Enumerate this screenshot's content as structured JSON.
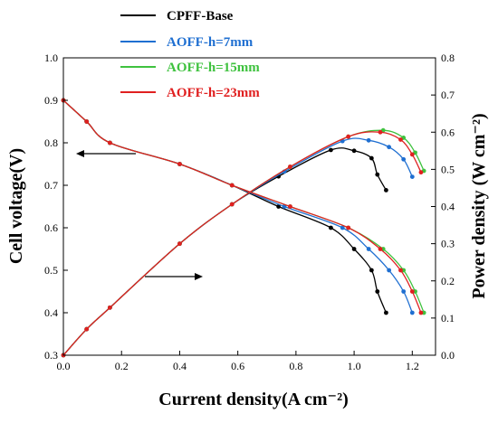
{
  "chart_data": {
    "type": "line",
    "xlabel": "Current density(A cm⁻²)",
    "ylabel_left": "Cell voltage(V)",
    "ylabel_right": "Power density (W cm⁻²)",
    "xlim": [
      0,
      1.28
    ],
    "ylim_left": [
      0.3,
      1.0
    ],
    "ylim_right": [
      0.0,
      0.8
    ],
    "x_ticks": [
      "0.0",
      "0.2",
      "0.4",
      "0.6",
      "0.8",
      "1.0",
      "1.2"
    ],
    "y_left_ticks": [
      "0.3",
      "0.4",
      "0.5",
      "0.6",
      "0.7",
      "0.8",
      "0.9",
      "1.0"
    ],
    "y_right_ticks": [
      "0.0",
      "0.1",
      "0.2",
      "0.3",
      "0.4",
      "0.5",
      "0.6",
      "0.7",
      "0.8"
    ],
    "legend_position": "top-center",
    "grid": false,
    "series": [
      {
        "name": "CPFF-Base",
        "color": "#000000",
        "x": [
          0.0,
          0.08,
          0.16,
          0.4,
          0.58,
          0.74,
          0.92,
          1.0,
          1.06,
          1.08,
          1.11
        ],
        "voltage": [
          0.9,
          0.85,
          0.8,
          0.75,
          0.7,
          0.65,
          0.6,
          0.55,
          0.5,
          0.45,
          0.4
        ],
        "power": [
          0.0,
          0.07,
          0.128,
          0.3,
          0.406,
          0.481,
          0.552,
          0.55,
          0.53,
          0.486,
          0.444
        ]
      },
      {
        "name": "AOFF-h=7mm",
        "color": "#1f6fd1",
        "x": [
          0.0,
          0.08,
          0.16,
          0.4,
          0.58,
          0.76,
          0.96,
          1.05,
          1.12,
          1.17,
          1.2
        ],
        "voltage": [
          0.9,
          0.85,
          0.8,
          0.75,
          0.7,
          0.65,
          0.6,
          0.55,
          0.5,
          0.45,
          0.4
        ],
        "power": [
          0.0,
          0.07,
          0.128,
          0.3,
          0.406,
          0.494,
          0.576,
          0.578,
          0.56,
          0.527,
          0.48
        ]
      },
      {
        "name": "AOFF-h=15mm",
        "color": "#3fc23f",
        "x": [
          0.0,
          0.08,
          0.16,
          0.4,
          0.58,
          0.78,
          0.98,
          1.1,
          1.17,
          1.21,
          1.24
        ],
        "voltage": [
          0.9,
          0.85,
          0.8,
          0.75,
          0.7,
          0.65,
          0.6,
          0.55,
          0.5,
          0.45,
          0.4
        ],
        "power": [
          0.0,
          0.07,
          0.128,
          0.3,
          0.406,
          0.507,
          0.588,
          0.605,
          0.585,
          0.545,
          0.496
        ]
      },
      {
        "name": "AOFF-h=23mm",
        "color": "#e02020",
        "x": [
          0.0,
          0.08,
          0.16,
          0.4,
          0.58,
          0.78,
          0.98,
          1.09,
          1.16,
          1.2,
          1.23
        ],
        "voltage": [
          0.9,
          0.85,
          0.8,
          0.75,
          0.7,
          0.65,
          0.6,
          0.55,
          0.5,
          0.45,
          0.4
        ],
        "power": [
          0.0,
          0.07,
          0.128,
          0.3,
          0.406,
          0.507,
          0.588,
          0.6,
          0.58,
          0.54,
          0.492
        ]
      }
    ]
  }
}
